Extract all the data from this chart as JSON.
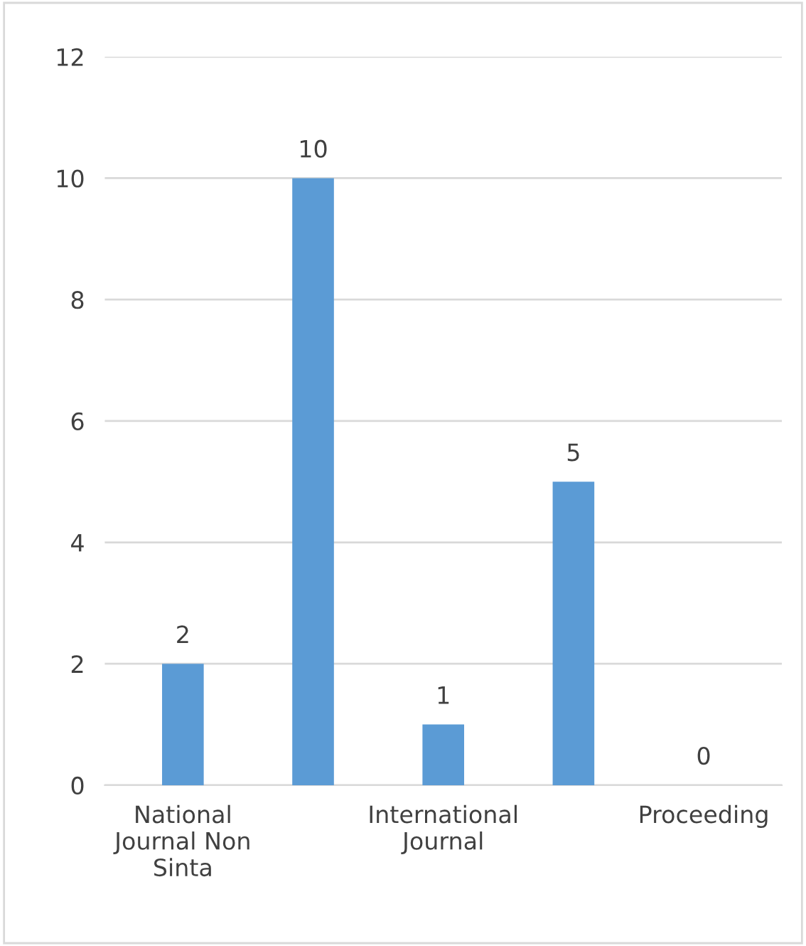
{
  "chart_data": {
    "type": "bar",
    "categories": [
      "National\nJournal Non\nSinta",
      null,
      "International\nJournal",
      null,
      "Proceeding"
    ],
    "values": [
      2,
      10,
      1,
      5,
      0
    ],
    "color": "#5b9bd5",
    "ylim": [
      0,
      12
    ],
    "yticks": [
      0,
      2,
      4,
      6,
      8,
      10,
      12
    ],
    "grid": "y",
    "data_labels": true
  }
}
